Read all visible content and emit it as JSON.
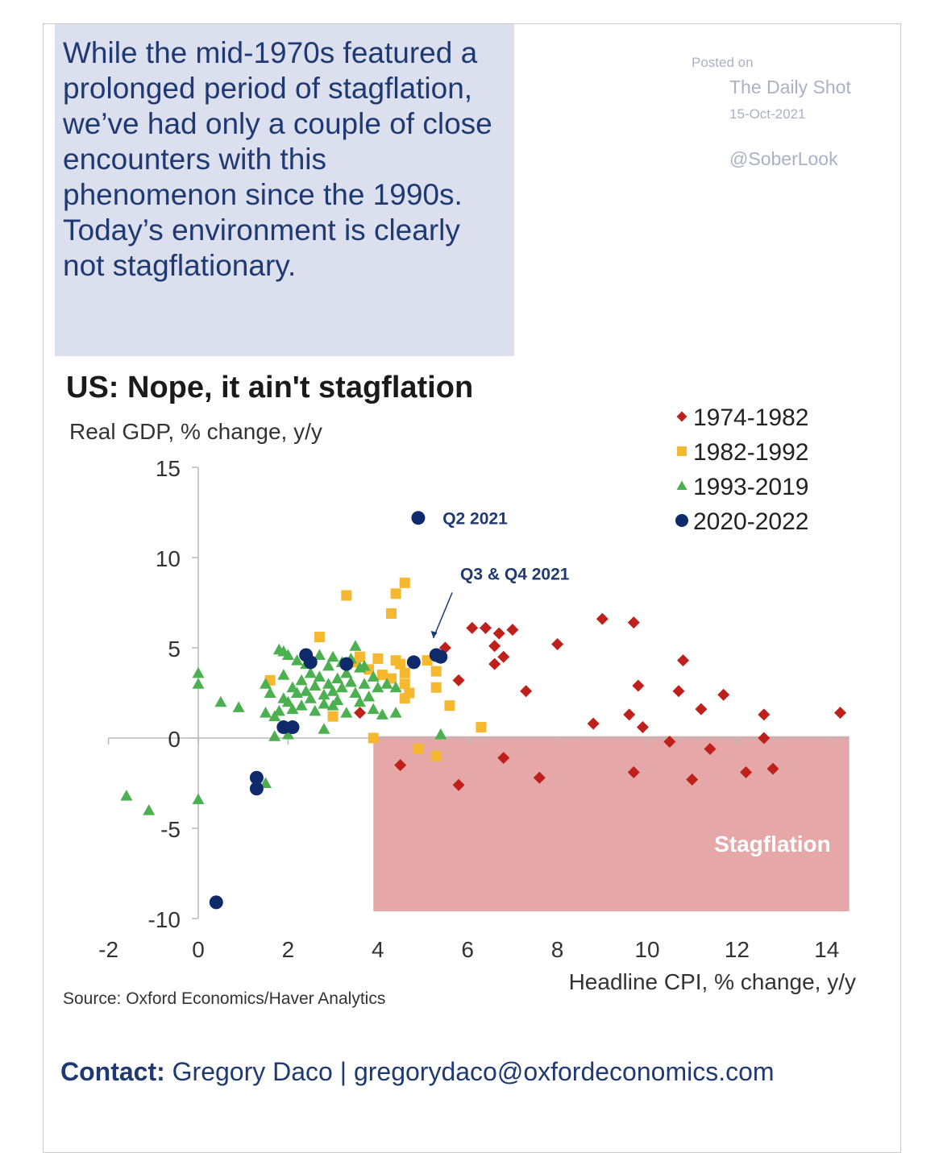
{
  "intro": {
    "text": "While the mid-1970s featured a prolonged period of stagflation, we’ve had only a couple of close encounters with this phenomenon since the 1990s. Today’s environment is clearly not stagflationary."
  },
  "posted": {
    "label": "Posted on",
    "site": "The Daily Shot",
    "date": "15-Oct-2021",
    "handle": "@SoberLook"
  },
  "source": "Source: Oxford Economics/Haver Analytics",
  "contact": {
    "label": "Contact:",
    "text": "Gregory Daco | gregorydaco@oxfordeconomics.com"
  },
  "colors": {
    "s1974": "#c0201b",
    "s1982": "#f5b82e",
    "s1993": "#4caf50",
    "s2020": "#0e2a6b",
    "stagflation": "#e3a0a0",
    "accent": "#1f3a73"
  },
  "chart_data": {
    "type": "scatter",
    "title": "US: Nope, it ain't stagflation",
    "ylabel": "Real GDP, % change, y/y",
    "xlabel": "Headline CPI, % change, y/y",
    "xlim": [
      -2,
      14.5
    ],
    "ylim": [
      -10,
      15
    ],
    "xticks": [
      -2,
      0,
      2,
      4,
      6,
      8,
      10,
      12,
      14
    ],
    "yticks": [
      -10,
      -5,
      0,
      5,
      10,
      15
    ],
    "grid": false,
    "legend_position": "top-right",
    "shaded_region": {
      "label": "Stagflation",
      "x": [
        3.9,
        14.5
      ],
      "y": [
        -9.6,
        0.1
      ]
    },
    "annotations": [
      {
        "text": "Q2 2021",
        "x": 5.3,
        "y": 12.2
      },
      {
        "text": "Q3 & Q4 2021",
        "x": 5.8,
        "y": 8.6,
        "arrow_to": [
          5.2,
          5.0
        ]
      }
    ],
    "series": [
      {
        "name": "1974-1982",
        "marker": "diamond",
        "color": "#c0201b",
        "points": [
          [
            3.6,
            1.4
          ],
          [
            4.5,
            -1.5
          ],
          [
            5.5,
            5.0
          ],
          [
            5.8,
            3.2
          ],
          [
            5.8,
            -2.6
          ],
          [
            6.1,
            6.1
          ],
          [
            6.4,
            6.1
          ],
          [
            6.6,
            5.1
          ],
          [
            6.7,
            5.8
          ],
          [
            6.6,
            4.1
          ],
          [
            6.8,
            4.5
          ],
          [
            7.0,
            6.0
          ],
          [
            6.8,
            -1.1
          ],
          [
            7.3,
            2.6
          ],
          [
            7.6,
            -2.2
          ],
          [
            8.0,
            5.2
          ],
          [
            8.8,
            0.8
          ],
          [
            9.0,
            6.6
          ],
          [
            9.6,
            1.3
          ],
          [
            9.7,
            6.4
          ],
          [
            9.7,
            -1.9
          ],
          [
            9.8,
            2.9
          ],
          [
            9.9,
            0.6
          ],
          [
            10.5,
            -0.2
          ],
          [
            10.7,
            2.6
          ],
          [
            10.8,
            4.3
          ],
          [
            11.0,
            -2.3
          ],
          [
            11.2,
            1.6
          ],
          [
            11.4,
            -0.6
          ],
          [
            11.7,
            2.4
          ],
          [
            12.2,
            -1.9
          ],
          [
            12.6,
            1.3
          ],
          [
            12.6,
            0.0
          ],
          [
            12.8,
            -1.7
          ],
          [
            14.3,
            1.4
          ]
        ]
      },
      {
        "name": "1982-1992",
        "marker": "square",
        "color": "#f5b82e",
        "points": [
          [
            1.6,
            3.2
          ],
          [
            2.7,
            5.6
          ],
          [
            3.0,
            1.2
          ],
          [
            3.3,
            7.9
          ],
          [
            3.5,
            4.2
          ],
          [
            3.6,
            4.5
          ],
          [
            3.8,
            3.8
          ],
          [
            3.9,
            0.0
          ],
          [
            4.0,
            4.4
          ],
          [
            4.1,
            3.5
          ],
          [
            4.3,
            3.3
          ],
          [
            4.4,
            4.3
          ],
          [
            4.5,
            4.1
          ],
          [
            4.6,
            3.6
          ],
          [
            4.3,
            6.9
          ],
          [
            4.4,
            8.0
          ],
          [
            4.6,
            8.6
          ],
          [
            4.6,
            3.0
          ],
          [
            4.7,
            2.5
          ],
          [
            4.6,
            2.2
          ],
          [
            4.9,
            -0.6
          ],
          [
            5.1,
            4.3
          ],
          [
            5.3,
            3.7
          ],
          [
            5.3,
            2.8
          ],
          [
            5.3,
            -1.0
          ],
          [
            5.6,
            1.8
          ],
          [
            6.3,
            0.6
          ]
        ]
      },
      {
        "name": "1993-2019",
        "marker": "triangle",
        "color": "#4caf50",
        "points": [
          [
            -1.6,
            -3.2
          ],
          [
            -1.1,
            -4.0
          ],
          [
            0.0,
            3.6
          ],
          [
            0.0,
            3.0
          ],
          [
            0.5,
            2.0
          ],
          [
            0.9,
            1.7
          ],
          [
            0.0,
            -3.4
          ],
          [
            1.5,
            3.0
          ],
          [
            1.5,
            1.4
          ],
          [
            1.6,
            2.5
          ],
          [
            1.7,
            1.2
          ],
          [
            1.8,
            1.5
          ],
          [
            1.8,
            4.9
          ],
          [
            1.9,
            4.8
          ],
          [
            1.9,
            2.2
          ],
          [
            1.9,
            3.5
          ],
          [
            2.0,
            4.6
          ],
          [
            2.0,
            2.0
          ],
          [
            2.1,
            1.6
          ],
          [
            2.1,
            2.8
          ],
          [
            2.2,
            4.3
          ],
          [
            2.2,
            2.5
          ],
          [
            2.3,
            3.2
          ],
          [
            2.3,
            1.8
          ],
          [
            2.4,
            2.6
          ],
          [
            2.4,
            4.1
          ],
          [
            2.5,
            2.2
          ],
          [
            2.5,
            3.6
          ],
          [
            2.6,
            2.9
          ],
          [
            2.6,
            1.5
          ],
          [
            2.7,
            4.6
          ],
          [
            2.7,
            3.4
          ],
          [
            2.8,
            2.4
          ],
          [
            2.8,
            1.9
          ],
          [
            2.9,
            4.0
          ],
          [
            2.9,
            3.0
          ],
          [
            3.0,
            4.5
          ],
          [
            3.0,
            2.6
          ],
          [
            3.0,
            1.8
          ],
          [
            3.1,
            3.3
          ],
          [
            3.1,
            2.1
          ],
          [
            3.2,
            4.2
          ],
          [
            3.2,
            2.8
          ],
          [
            3.3,
            3.6
          ],
          [
            3.3,
            1.4
          ],
          [
            3.4,
            4.4
          ],
          [
            3.4,
            3.1
          ],
          [
            3.5,
            2.5
          ],
          [
            3.5,
            5.1
          ],
          [
            3.6,
            3.9
          ],
          [
            3.6,
            2.0
          ],
          [
            3.7,
            4.0
          ],
          [
            3.7,
            3.0
          ],
          [
            3.8,
            2.3
          ],
          [
            3.9,
            1.6
          ],
          [
            3.9,
            3.4
          ],
          [
            4.0,
            2.8
          ],
          [
            4.1,
            1.3
          ],
          [
            4.2,
            3.0
          ],
          [
            4.4,
            1.4
          ],
          [
            4.4,
            2.8
          ],
          [
            1.5,
            -2.5
          ],
          [
            2.0,
            0.2
          ],
          [
            2.8,
            0.5
          ],
          [
            1.7,
            0.1
          ],
          [
            5.4,
            0.2
          ]
        ]
      },
      {
        "name": "2020-2022",
        "marker": "circle",
        "color": "#0e2a6b",
        "points": [
          [
            0.4,
            -9.1
          ],
          [
            1.3,
            -2.2
          ],
          [
            1.3,
            -2.8
          ],
          [
            1.9,
            0.6
          ],
          [
            2.1,
            0.6
          ],
          [
            2.4,
            4.6
          ],
          [
            2.5,
            4.2
          ],
          [
            3.3,
            4.1
          ],
          [
            4.8,
            4.2
          ],
          [
            4.9,
            12.2
          ],
          [
            5.3,
            4.6
          ],
          [
            5.4,
            4.5
          ]
        ]
      }
    ]
  }
}
